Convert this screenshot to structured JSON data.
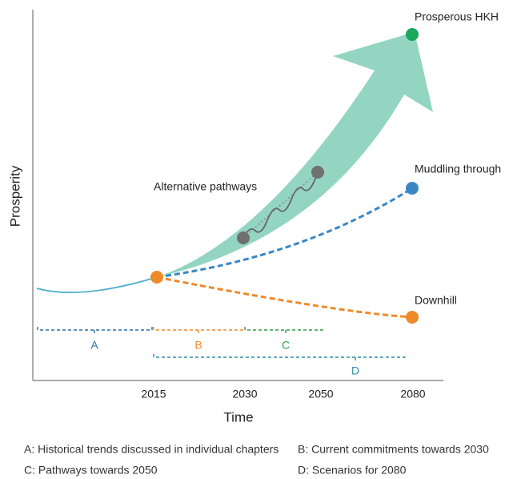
{
  "axes": {
    "x_label": "Time",
    "y_label": "Prosperity",
    "x_ticks": [
      "2015",
      "2030",
      "2050",
      "2080"
    ]
  },
  "scenarios": [
    {
      "label": "Prosperous HKH"
    },
    {
      "label": "Muddling through"
    },
    {
      "label": "Downhill"
    }
  ],
  "annotation": "Alternative pathways",
  "brackets": [
    "A",
    "B",
    "C",
    "D"
  ],
  "notes": [
    "A: Historical trends discussed in individual chapters",
    "B: Current commitments towards 2030",
    "C: Pathways towards 2050",
    "D: Scenarios for 2080"
  ]
}
